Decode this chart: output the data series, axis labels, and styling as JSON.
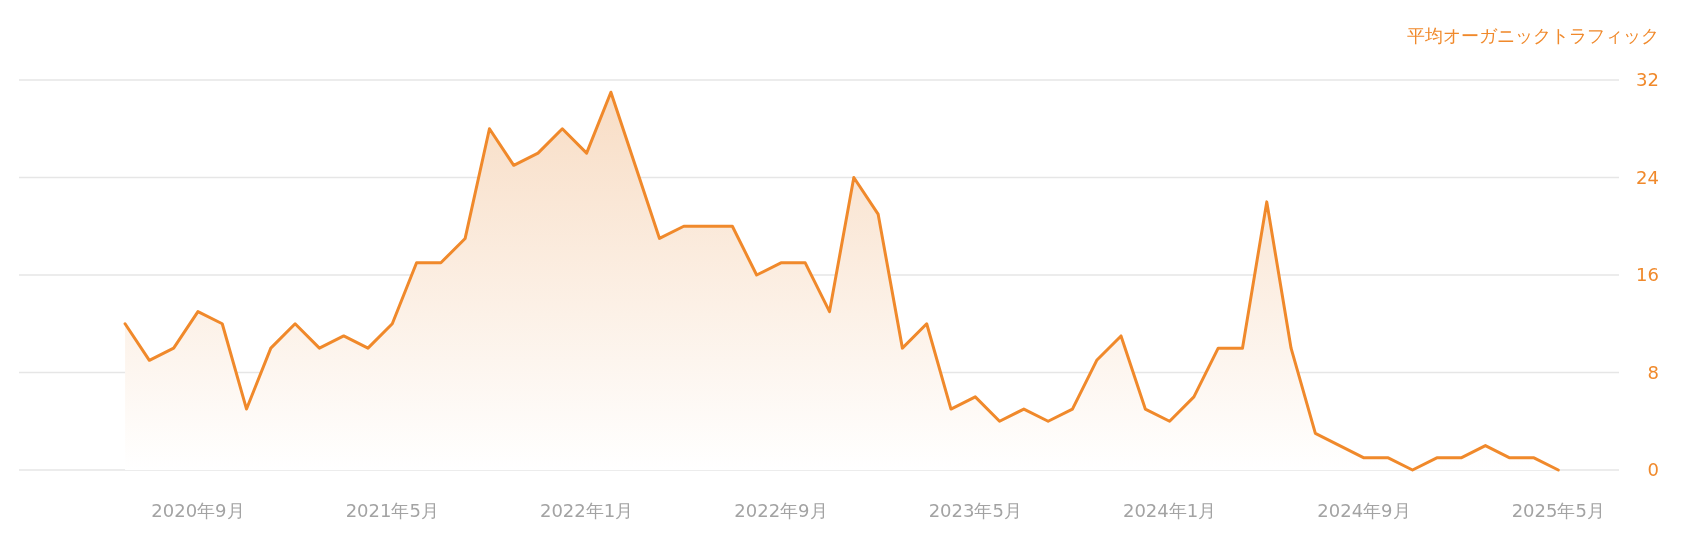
{
  "chart_data": {
    "type": "area",
    "ylabel": "平均オーガニックトラフィック",
    "color": "#f0892b",
    "x": [
      "2020-06",
      "2020-07",
      "2020-08",
      "2020-09",
      "2020-10",
      "2020-11",
      "2020-12",
      "2021-01",
      "2021-02",
      "2021-03",
      "2021-04",
      "2021-05",
      "2021-06",
      "2021-07",
      "2021-08",
      "2021-09",
      "2021-10",
      "2021-11",
      "2021-12",
      "2022-01",
      "2022-02",
      "2022-03",
      "2022-04",
      "2022-05",
      "2022-06",
      "2022-07",
      "2022-08",
      "2022-09",
      "2022-10",
      "2022-11",
      "2022-12",
      "2023-01",
      "2023-02",
      "2023-03",
      "2023-04",
      "2023-05",
      "2023-06",
      "2023-07",
      "2023-08",
      "2023-09",
      "2023-10",
      "2023-11",
      "2023-12",
      "2024-01",
      "2024-02",
      "2024-03",
      "2024-04",
      "2024-05",
      "2024-06",
      "2024-07",
      "2024-08",
      "2024-09",
      "2024-10",
      "2024-11",
      "2024-12",
      "2025-01",
      "2025-02",
      "2025-03",
      "2025-04",
      "2025-05"
    ],
    "values": [
      12,
      9,
      10,
      13,
      12,
      5,
      10,
      12,
      10,
      11,
      10,
      12,
      17,
      17,
      19,
      28,
      25,
      26,
      28,
      26,
      31,
      25,
      19,
      20,
      20,
      20,
      16,
      17,
      17,
      13,
      24,
      21,
      10,
      12,
      5,
      6,
      4,
      5,
      4,
      5,
      9,
      11,
      5,
      4,
      6,
      10,
      10,
      22,
      10,
      3,
      2,
      1,
      1,
      0,
      1,
      1,
      2,
      1,
      1,
      0
    ],
    "xlim": [
      "2020-01-20",
      "2025-07-16"
    ],
    "xticks": [
      {
        "value": "2020-09",
        "label": "2020年9月"
      },
      {
        "value": "2021-05",
        "label": "2021年5月"
      },
      {
        "value": "2022-01",
        "label": "2022年1月"
      },
      {
        "value": "2022-09",
        "label": "2022年9月"
      },
      {
        "value": "2023-05",
        "label": "2023年5月"
      },
      {
        "value": "2024-01",
        "label": "2024年1月"
      },
      {
        "value": "2024-09",
        "label": "2024年9月"
      },
      {
        "value": "2025-05",
        "label": "2025年5月"
      }
    ],
    "ylim": [
      0,
      32
    ],
    "yticks": [
      0,
      8,
      16,
      24,
      32
    ],
    "grid": "y"
  }
}
